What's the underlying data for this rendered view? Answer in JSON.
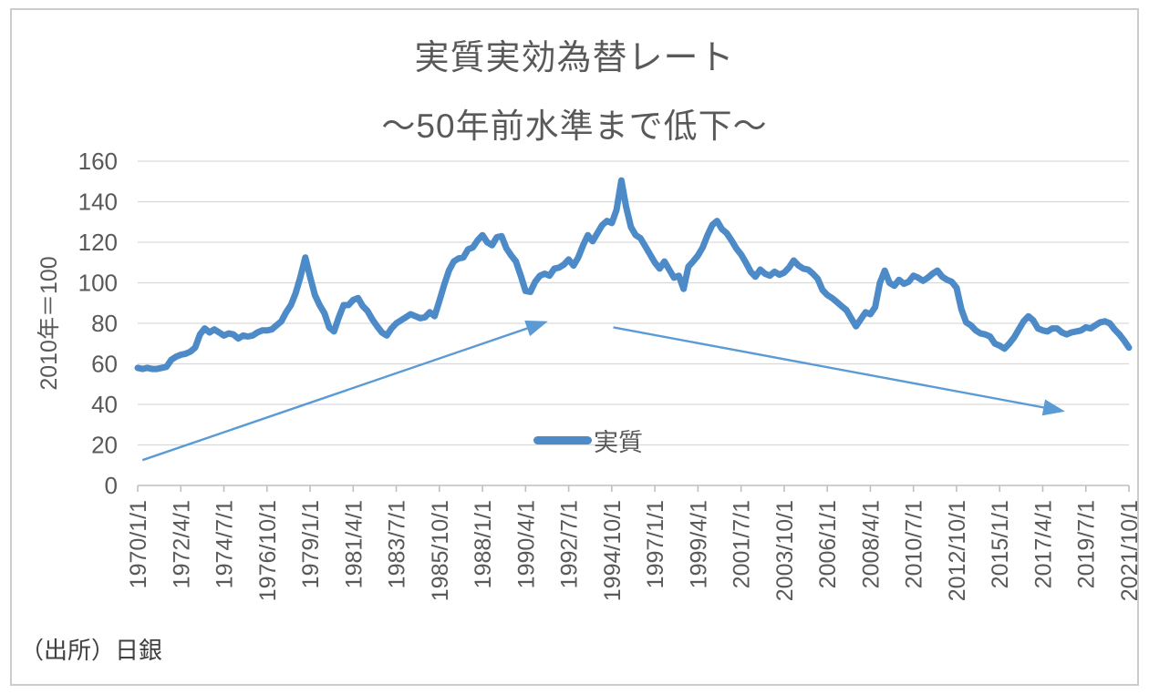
{
  "header": {
    "title": "実質実効為替レート",
    "subtitle": "〜50年前水準まで低下〜"
  },
  "source_note": "（出所）日銀",
  "colors": {
    "series": "#4d8ac8",
    "arrow": "#5b9bd5",
    "grid": "#d9d9d9",
    "axis": "#bfbfbf",
    "text": "#595959"
  },
  "chart_data": {
    "type": "line",
    "title": "実質実効為替レート",
    "subtitle": "〜50年前水準まで低下〜",
    "xlabel": "",
    "ylabel": "2010年＝100",
    "ylim": [
      0,
      160
    ],
    "ytick_step": 20,
    "grid": true,
    "legend": {
      "label": "実質",
      "position": "inside-bottom-center"
    },
    "x_start": "1970/1/1",
    "x_end": "2021/10/1",
    "x_step_months": 3,
    "xtick_interval_months": 27,
    "xtick_labels": [
      "1970/1/1",
      "1972/4/1",
      "1974/7/1",
      "1976/10/1",
      "1979/1/1",
      "1981/4/1",
      "1983/7/1",
      "1985/10/1",
      "1988/1/1",
      "1990/4/1",
      "1992/7/1",
      "1994/10/1",
      "1997/1/1",
      "1999/4/1",
      "2001/7/1",
      "2003/10/1",
      "2006/1/1",
      "2008/4/1",
      "2010/7/1",
      "2012/10/1",
      "2015/1/1",
      "2017/4/1",
      "2019/7/1",
      "2021/10/1"
    ],
    "series": [
      {
        "name": "実質",
        "values": [
          58,
          57.5,
          58,
          57.5,
          57.5,
          58,
          58.5,
          62,
          63.5,
          64.5,
          65,
          66,
          68,
          74.5,
          77.5,
          75.5,
          77,
          75.5,
          74,
          75,
          74.5,
          72.5,
          74,
          73.5,
          74,
          75.5,
          76.5,
          76.5,
          77,
          79,
          81,
          85.5,
          89,
          95,
          103,
          112.5,
          103,
          94,
          89,
          85,
          78,
          76,
          83,
          89,
          89,
          91.5,
          92.5,
          88.5,
          86,
          82,
          78.5,
          75.5,
          74,
          77.5,
          80,
          81.5,
          83,
          84.5,
          83.5,
          82.5,
          83,
          85.5,
          83.5,
          91,
          99,
          106,
          110.5,
          112,
          112.5,
          116.5,
          117.5,
          121,
          123.5,
          120,
          118.5,
          122.5,
          123,
          117,
          113.5,
          110.5,
          103.5,
          96,
          95.5,
          100.5,
          103.5,
          104.5,
          103.5,
          107,
          107.5,
          109,
          111.5,
          108.5,
          112.5,
          118.5,
          123.5,
          120.5,
          124.5,
          128.5,
          130.5,
          129.5,
          136,
          150.5,
          137.5,
          127.5,
          123.5,
          122,
          118,
          114,
          110,
          107,
          110.5,
          106.5,
          102.5,
          103.5,
          97,
          108,
          110.5,
          113.5,
          117.5,
          123.5,
          128.5,
          130.5,
          126.5,
          124.5,
          121,
          117,
          114,
          110,
          105.5,
          103,
          106.5,
          104.5,
          103.5,
          105.5,
          104,
          105,
          107.5,
          111,
          108.5,
          107,
          106.5,
          104.5,
          102,
          96.5,
          94,
          92.5,
          90.5,
          88.5,
          86.5,
          82.5,
          78.5,
          82,
          85.5,
          84.5,
          88,
          100,
          106,
          100,
          98.5,
          101.5,
          99.5,
          100.5,
          103.5,
          102.5,
          101,
          102.5,
          104.5,
          106,
          103,
          101.5,
          100.5,
          97.5,
          87,
          80.5,
          79,
          76.5,
          75,
          74.5,
          73.5,
          70,
          69,
          67.5,
          70,
          73,
          77,
          81,
          83.5,
          81.5,
          77.5,
          76.5,
          76,
          77.5,
          77.5,
          75.5,
          74.5,
          75.5,
          76,
          76.5,
          78,
          77.5,
          79,
          80.5,
          81,
          80,
          77,
          74.5,
          71.5,
          68
        ]
      }
    ],
    "annotations": [
      {
        "kind": "arrow",
        "name": "rising-trend-arrow",
        "from_month": 3,
        "from_value": 12.5,
        "to_month": 257,
        "to_value": 81
      },
      {
        "kind": "arrow",
        "name": "falling-trend-arrow",
        "from_month": 298,
        "from_value": 78,
        "to_month": 581,
        "to_value": 36.5
      }
    ]
  }
}
